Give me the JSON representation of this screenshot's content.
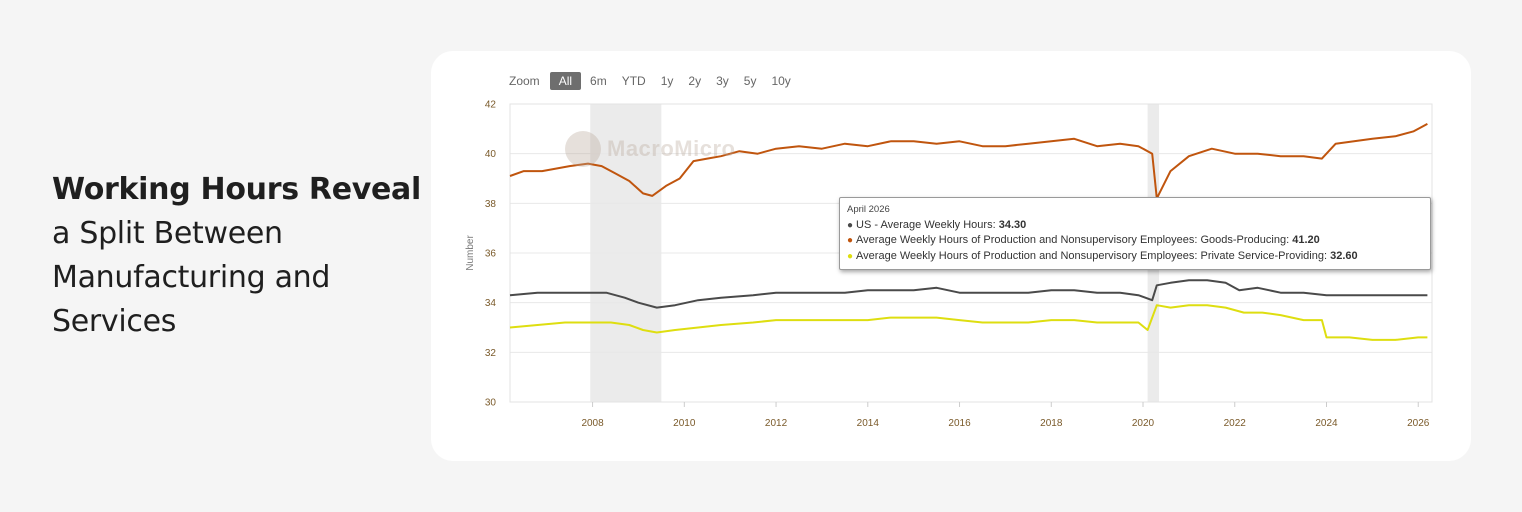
{
  "headline": {
    "bold": "Working Hours Reveal",
    "rest": "a Split Between Manufacturing and Services"
  },
  "watermark": "MacroMicro",
  "zoom": {
    "label": "Zoom",
    "buttons": [
      "All",
      "6m",
      "YTD",
      "1y",
      "2y",
      "3y",
      "5y",
      "10y"
    ],
    "active": "All"
  },
  "tooltip": {
    "date": "April 2026",
    "rows": [
      {
        "label": "US - Average Weekly Hours: ",
        "value": "34.30",
        "color": "#4a4a4a"
      },
      {
        "label": "Average Weekly Hours of Production and Nonsupervisory Employees: Goods-Producing: ",
        "value": "41.20",
        "color": "#c0550e"
      },
      {
        "label": "Average Weekly Hours of Production and Nonsupervisory Employees: Private Service-Providing: ",
        "value": "32.60",
        "color": "#dede10"
      }
    ]
  },
  "chart_data": {
    "type": "line",
    "ylabel": "Number",
    "ylim": [
      30,
      42
    ],
    "yticks": [
      30,
      32,
      34,
      36,
      38,
      40,
      42
    ],
    "xlim": [
      2006.2,
      2026.3
    ],
    "xticks": [
      2008,
      2010,
      2012,
      2014,
      2016,
      2018,
      2020,
      2022,
      2024,
      2026
    ],
    "recessions": [
      [
        2007.95,
        2009.5
      ],
      [
        2020.1,
        2020.35
      ]
    ],
    "grid": "horizontal",
    "series": [
      {
        "name": "Average Weekly Hours of Production and Nonsupervisory Employees: Goods-Producing",
        "color": "#c0550e",
        "x": [
          2006.2,
          2006.5,
          2006.9,
          2007.2,
          2007.5,
          2007.9,
          2008.2,
          2008.5,
          2008.8,
          2009.1,
          2009.3,
          2009.6,
          2009.9,
          2010.2,
          2010.5,
          2010.8,
          2011.2,
          2011.6,
          2012.0,
          2012.5,
          2013.0,
          2013.5,
          2014.0,
          2014.5,
          2015.0,
          2015.5,
          2016.0,
          2016.5,
          2017.0,
          2017.5,
          2018.0,
          2018.5,
          2019.0,
          2019.5,
          2019.9,
          2020.2,
          2020.3,
          2020.6,
          2021.0,
          2021.5,
          2022.0,
          2022.5,
          2023.0,
          2023.5,
          2023.9,
          2024.2,
          2024.6,
          2025.0,
          2025.5,
          2025.9,
          2026.2
        ],
        "y": [
          39.1,
          39.3,
          39.3,
          39.4,
          39.5,
          39.6,
          39.5,
          39.2,
          38.9,
          38.4,
          38.3,
          38.7,
          39.0,
          39.7,
          39.8,
          39.9,
          40.1,
          40.0,
          40.2,
          40.3,
          40.2,
          40.4,
          40.3,
          40.5,
          40.5,
          40.4,
          40.5,
          40.3,
          40.3,
          40.4,
          40.5,
          40.6,
          40.3,
          40.4,
          40.3,
          40.0,
          38.2,
          39.3,
          39.9,
          40.2,
          40.0,
          40.0,
          39.9,
          39.9,
          39.8,
          40.4,
          40.5,
          40.6,
          40.7,
          40.9,
          41.2
        ]
      },
      {
        "name": "US - Average Weekly Hours",
        "color": "#4a4a4a",
        "x": [
          2006.2,
          2006.8,
          2007.4,
          2007.9,
          2008.3,
          2008.7,
          2009.0,
          2009.4,
          2009.8,
          2010.3,
          2010.8,
          2011.5,
          2012.0,
          2012.5,
          2013.0,
          2013.5,
          2014.0,
          2014.5,
          2015.0,
          2015.5,
          2016.0,
          2016.5,
          2017.0,
          2017.5,
          2018.0,
          2018.5,
          2019.0,
          2019.5,
          2019.9,
          2020.2,
          2020.3,
          2020.6,
          2021.0,
          2021.4,
          2021.8,
          2022.1,
          2022.5,
          2023.0,
          2023.5,
          2024.0,
          2024.5,
          2025.0,
          2025.5,
          2026.0,
          2026.2
        ],
        "y": [
          34.3,
          34.4,
          34.4,
          34.4,
          34.4,
          34.2,
          34.0,
          33.8,
          33.9,
          34.1,
          34.2,
          34.3,
          34.4,
          34.4,
          34.4,
          34.4,
          34.5,
          34.5,
          34.5,
          34.6,
          34.4,
          34.4,
          34.4,
          34.4,
          34.5,
          34.5,
          34.4,
          34.4,
          34.3,
          34.1,
          34.7,
          34.8,
          34.9,
          34.9,
          34.8,
          34.5,
          34.6,
          34.4,
          34.4,
          34.3,
          34.3,
          34.3,
          34.3,
          34.3,
          34.3
        ]
      },
      {
        "name": "Average Weekly Hours of Production and Nonsupervisory Employees: Private Service-Providing",
        "color": "#dede10",
        "x": [
          2006.2,
          2006.8,
          2007.4,
          2007.9,
          2008.4,
          2008.8,
          2009.1,
          2009.4,
          2009.8,
          2010.3,
          2010.8,
          2011.5,
          2012.0,
          2012.5,
          2013.0,
          2013.5,
          2014.0,
          2014.5,
          2015.0,
          2015.5,
          2016.0,
          2016.5,
          2017.0,
          2017.5,
          2018.0,
          2018.5,
          2019.0,
          2019.5,
          2019.9,
          2020.1,
          2020.3,
          2020.6,
          2021.0,
          2021.4,
          2021.8,
          2022.2,
          2022.6,
          2023.0,
          2023.5,
          2023.9,
          2024.0,
          2024.5,
          2025.0,
          2025.5,
          2026.0,
          2026.2
        ],
        "y": [
          33.0,
          33.1,
          33.2,
          33.2,
          33.2,
          33.1,
          32.9,
          32.8,
          32.9,
          33.0,
          33.1,
          33.2,
          33.3,
          33.3,
          33.3,
          33.3,
          33.3,
          33.4,
          33.4,
          33.4,
          33.3,
          33.2,
          33.2,
          33.2,
          33.3,
          33.3,
          33.2,
          33.2,
          33.2,
          32.9,
          33.9,
          33.8,
          33.9,
          33.9,
          33.8,
          33.6,
          33.6,
          33.5,
          33.3,
          33.3,
          32.6,
          32.6,
          32.5,
          32.5,
          32.6,
          32.6
        ]
      }
    ]
  }
}
